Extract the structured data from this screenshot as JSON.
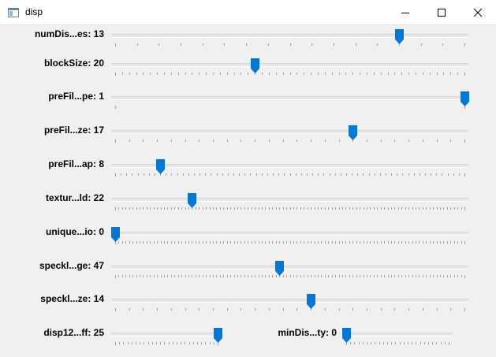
{
  "window": {
    "title": "disp",
    "icon": "window-app-icon",
    "controls": [
      "minimize-icon",
      "maximize-icon",
      "close-icon"
    ]
  },
  "accent_color": "#0078d7",
  "sliders": [
    {
      "id": "numDisparities",
      "label": "numDis...es: 13",
      "value": 13,
      "max": 16
    },
    {
      "id": "blockSize",
      "label": "blockSize: 20",
      "value": 20,
      "max": 50
    },
    {
      "id": "preFilterType",
      "label": "preFil...pe: 1",
      "value": 1,
      "max": 1
    },
    {
      "id": "preFilterSize",
      "label": "preFil...ze: 17",
      "value": 17,
      "max": 25
    },
    {
      "id": "preFilterCap",
      "label": "preFil...ap: 8",
      "value": 8,
      "max": 62
    },
    {
      "id": "textureThreshold",
      "label": "textur...ld: 22",
      "value": 22,
      "max": 100
    },
    {
      "id": "uniquenessRatio",
      "label": "unique...io: 0",
      "value": 0,
      "max": 100
    },
    {
      "id": "speckleRange",
      "label": "speckl...ge: 47",
      "value": 47,
      "max": 100
    },
    {
      "id": "speckleWindowSize",
      "label": "speckl...ze: 14",
      "value": 14,
      "max": 25
    },
    {
      "id": "disp12MaxDiff",
      "label": "disp12...ff: 25",
      "value": 25,
      "max": 25
    },
    {
      "id": "minDisparity",
      "label": "minDis...ty: 0",
      "value": 0,
      "max": 25
    }
  ]
}
